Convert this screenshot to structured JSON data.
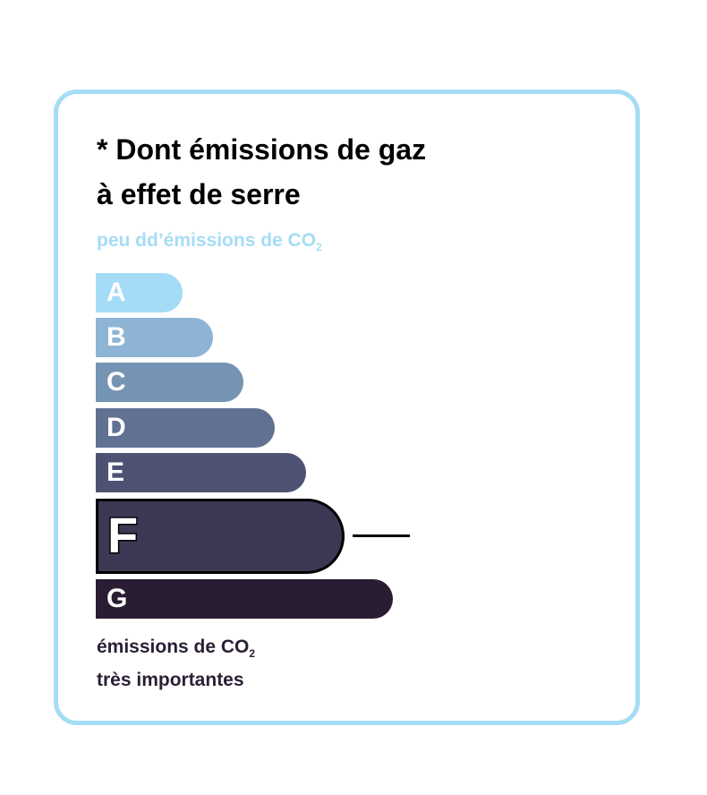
{
  "title": [
    "* Dont émissions de gaz",
    "à effet de serre"
  ],
  "top_label": {
    "text": "peu dd’émissions de CO",
    "sub": "2"
  },
  "bottom_label": {
    "line1": "émissions de CO",
    "sub": "2",
    "line2": "très importantes"
  },
  "classes": [
    {
      "letter": "A",
      "color": "#a4dbf7"
    },
    {
      "letter": "B",
      "color": "#8db4d4"
    },
    {
      "letter": "C",
      "color": "#7593b3"
    },
    {
      "letter": "D",
      "color": "#607191"
    },
    {
      "letter": "E",
      "color": "#4e5272"
    },
    {
      "letter": "F",
      "color": "#3c3854",
      "selected": true
    },
    {
      "letter": "G",
      "color": "#2a1c33"
    }
  ],
  "selected_class": "F",
  "border_color": "#a6dcf5"
}
